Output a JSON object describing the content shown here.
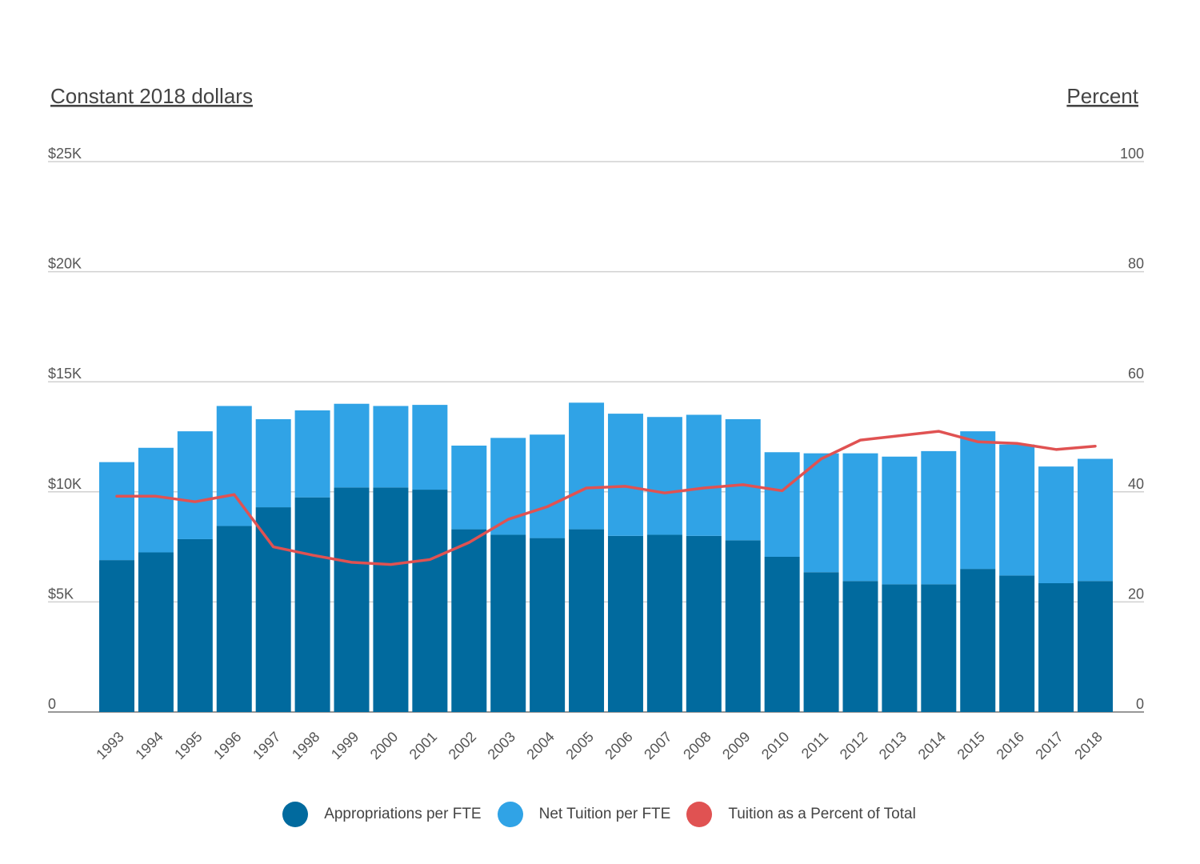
{
  "chart_data": {
    "type": "bar",
    "stacked": true,
    "left_axis_title": "Constant 2018 dollars",
    "right_axis_title": "Percent",
    "left_ticks": [
      "0",
      "$5K",
      "$10K",
      "$15K",
      "$20K",
      "$25K"
    ],
    "right_ticks": [
      "0",
      "20",
      "40",
      "60",
      "80",
      "100"
    ],
    "ylim_left": [
      0,
      25000
    ],
    "ylim_right": [
      0,
      100
    ],
    "categories": [
      "1993",
      "1994",
      "1995",
      "1996",
      "1997",
      "1998",
      "1999",
      "2000",
      "2001",
      "2002",
      "2003",
      "2004",
      "2005",
      "2006",
      "2007",
      "2008",
      "2009",
      "2010",
      "2011",
      "2012",
      "2013",
      "2014",
      "2015",
      "2016",
      "2017",
      "2018"
    ],
    "series": [
      {
        "name": "Appropriations per FTE",
        "kind": "bar",
        "axis": "left",
        "color": "#016a9e",
        "values": [
          6900,
          7250,
          7850,
          8450,
          9300,
          9750,
          10200,
          10200,
          10100,
          8300,
          8050,
          7900,
          8300,
          8000,
          8050,
          8000,
          7800,
          7050,
          6350,
          5950,
          5800,
          5800,
          6500,
          6200,
          5850,
          5950
        ]
      },
      {
        "name": "Net Tuition per FTE",
        "kind": "bar",
        "axis": "left",
        "color": "#30a3e6",
        "values": [
          4450,
          4750,
          4900,
          5450,
          4000,
          3950,
          3800,
          3700,
          3850,
          3800,
          4400,
          4700,
          5750,
          5550,
          5350,
          5500,
          5500,
          4750,
          5400,
          5800,
          5800,
          6050,
          6250,
          5950,
          5300,
          5550
        ]
      },
      {
        "name": "Tuition as a Percent of Total",
        "kind": "line",
        "axis": "right",
        "color": "#e05252",
        "values": [
          39.2,
          39.2,
          38.2,
          39.5,
          30.0,
          28.5,
          27.2,
          26.8,
          27.7,
          30.8,
          35.0,
          37.3,
          40.7,
          41.0,
          39.8,
          40.7,
          41.3,
          40.2,
          46.0,
          49.4,
          50.2,
          51.0,
          49.1,
          48.8,
          47.7,
          48.3
        ]
      }
    ],
    "grid": true,
    "legend_position": "bottom"
  }
}
